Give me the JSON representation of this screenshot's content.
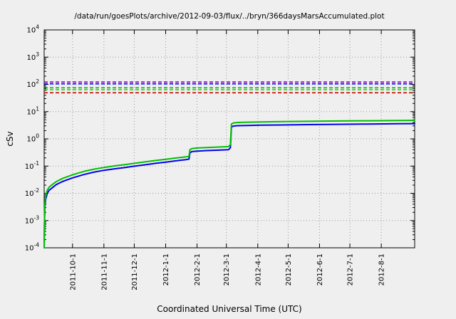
{
  "colors": {
    "background": "#efefef",
    "grid": "#9a9a9a",
    "axis": "#000000"
  },
  "chart_data": {
    "type": "line",
    "title": "/data/run/goesPlots/archive/2012-09-03/flux/../bryn/366daysMarsAccumulated.plot",
    "xlabel": "Coordinated Universal Time (UTC)",
    "ylabel": "cSv",
    "y_scale": "log",
    "y_exponent_range": [
      -4,
      4
    ],
    "y_tick_labels": [
      "10^-4",
      "10^-3",
      "10^-2",
      "10^-1",
      "10^0",
      "10^1",
      "10^2",
      "10^3",
      "10^4"
    ],
    "x_unit": "days since 2011-09-03",
    "x_range": [
      0,
      366
    ],
    "grid": true,
    "x_ticks": [
      {
        "label": "2011-10-1",
        "day": 28
      },
      {
        "label": "2011-11-1",
        "day": 59
      },
      {
        "label": "2011-12-1",
        "day": 89
      },
      {
        "label": "2012-1-1",
        "day": 120
      },
      {
        "label": "2012-2-1",
        "day": 151
      },
      {
        "label": "2012-3-1",
        "day": 180
      },
      {
        "label": "2012-4-1",
        "day": 211
      },
      {
        "label": "2012-5-1",
        "day": 241
      },
      {
        "label": "2012-6-1",
        "day": 272
      },
      {
        "label": "2012-7-1",
        "day": 302
      },
      {
        "label": "2012-8-1",
        "day": 333
      }
    ],
    "reference_lines": [
      {
        "name": "limit-purple",
        "color": "#8800cc",
        "value": 122
      },
      {
        "name": "limit-blue",
        "color": "#0000ff",
        "value": 105
      },
      {
        "name": "limit-green-upper",
        "color": "#00bb00",
        "value": 75
      },
      {
        "name": "limit-green-lower",
        "color": "#33cc33",
        "value": 64
      },
      {
        "name": "limit-red",
        "color": "#cc0000",
        "value": 49
      }
    ],
    "series": [
      {
        "name": "accumulated-dose-blue",
        "color": "#0000ee",
        "points": [
          [
            0,
            0.0001
          ],
          [
            0.3,
            0.0008
          ],
          [
            0.7,
            0.003
          ],
          [
            1.5,
            0.006
          ],
          [
            3,
            0.01
          ],
          [
            5,
            0.013
          ],
          [
            8,
            0.016
          ],
          [
            12,
            0.021
          ],
          [
            18,
            0.027
          ],
          [
            28,
            0.037
          ],
          [
            40,
            0.05
          ],
          [
            50,
            0.061
          ],
          [
            59,
            0.07
          ],
          [
            70,
            0.08
          ],
          [
            80,
            0.089
          ],
          [
            89,
            0.099
          ],
          [
            100,
            0.112
          ],
          [
            110,
            0.126
          ],
          [
            120,
            0.14
          ],
          [
            130,
            0.156
          ],
          [
            140,
            0.172
          ],
          [
            143,
            0.18
          ],
          [
            144,
            0.31
          ],
          [
            146,
            0.34
          ],
          [
            151,
            0.355
          ],
          [
            160,
            0.37
          ],
          [
            172,
            0.385
          ],
          [
            182,
            0.4
          ],
          [
            183,
            0.43
          ],
          [
            184,
            0.48
          ],
          [
            185,
            2.7
          ],
          [
            187,
            2.95
          ],
          [
            191,
            3.05
          ],
          [
            200,
            3.1
          ],
          [
            215,
            3.17
          ],
          [
            235,
            3.24
          ],
          [
            260,
            3.33
          ],
          [
            290,
            3.42
          ],
          [
            320,
            3.5
          ],
          [
            350,
            3.58
          ],
          [
            366,
            3.62
          ]
        ]
      },
      {
        "name": "accumulated-dose-green",
        "color": "#00c000",
        "points": [
          [
            0,
            0.0001
          ],
          [
            0.3,
            0.001
          ],
          [
            0.7,
            0.004
          ],
          [
            1.5,
            0.008
          ],
          [
            3,
            0.013
          ],
          [
            5,
            0.017
          ],
          [
            8,
            0.021
          ],
          [
            12,
            0.027
          ],
          [
            18,
            0.035
          ],
          [
            28,
            0.048
          ],
          [
            40,
            0.065
          ],
          [
            50,
            0.078
          ],
          [
            59,
            0.089
          ],
          [
            70,
            0.102
          ],
          [
            80,
            0.114
          ],
          [
            89,
            0.126
          ],
          [
            100,
            0.143
          ],
          [
            110,
            0.16
          ],
          [
            120,
            0.178
          ],
          [
            130,
            0.198
          ],
          [
            140,
            0.218
          ],
          [
            143,
            0.228
          ],
          [
            144,
            0.4
          ],
          [
            146,
            0.44
          ],
          [
            151,
            0.46
          ],
          [
            160,
            0.48
          ],
          [
            172,
            0.5
          ],
          [
            182,
            0.52
          ],
          [
            183,
            0.56
          ],
          [
            184,
            0.62
          ],
          [
            185,
            3.5
          ],
          [
            187,
            3.85
          ],
          [
            191,
            4.0
          ],
          [
            200,
            4.08
          ],
          [
            215,
            4.18
          ],
          [
            235,
            4.28
          ],
          [
            260,
            4.4
          ],
          [
            290,
            4.52
          ],
          [
            320,
            4.62
          ],
          [
            350,
            4.72
          ],
          [
            366,
            4.78
          ]
        ]
      }
    ]
  }
}
